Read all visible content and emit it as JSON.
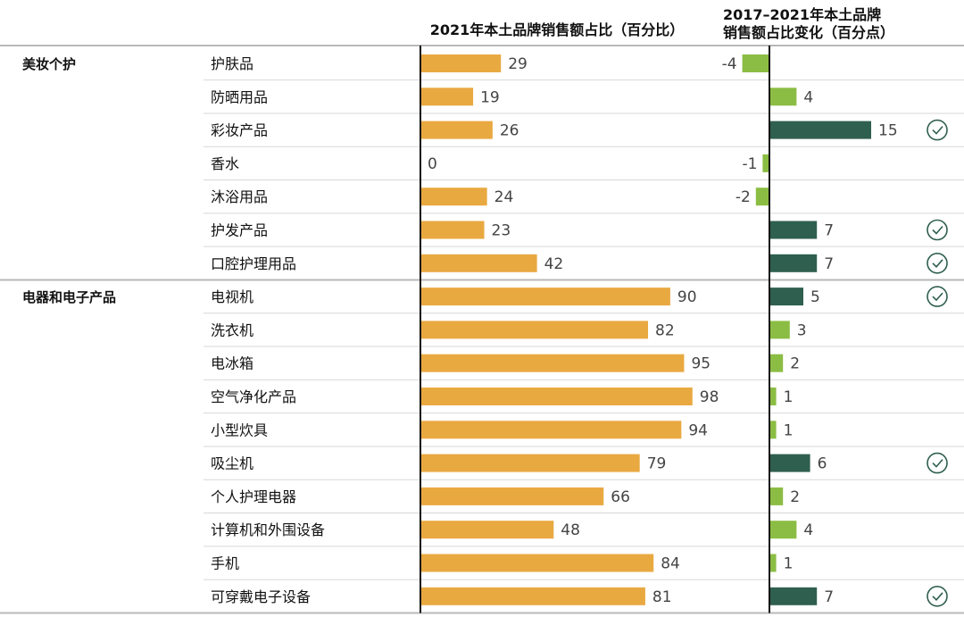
{
  "chart_data": {
    "type": "bar",
    "headers": {
      "left": "2021年本土品牌销售额占比（百分比）",
      "right_line1": "2017–2021年本土品牌",
      "right_line2": "销售额占比变化（百分点）"
    },
    "groups": [
      {
        "name": "美妆个护",
        "items": [
          {
            "label": "护肤品",
            "share": 29,
            "change": -4,
            "check": false
          },
          {
            "label": "防晒用品",
            "share": 19,
            "change": 4,
            "check": false
          },
          {
            "label": "彩妆产品",
            "share": 26,
            "change": 15,
            "check": true
          },
          {
            "label": "香水",
            "share": 0,
            "change": -1,
            "check": false
          },
          {
            "label": "沐浴用品",
            "share": 24,
            "change": -2,
            "check": false
          },
          {
            "label": "护发产品",
            "share": 23,
            "change": 7,
            "check": true
          },
          {
            "label": "口腔护理用品",
            "share": 42,
            "change": 7,
            "check": true
          }
        ]
      },
      {
        "name": "电器和电子产品",
        "items": [
          {
            "label": "电视机",
            "share": 90,
            "change": 5,
            "check": true
          },
          {
            "label": "洗衣机",
            "share": 82,
            "change": 3,
            "check": false
          },
          {
            "label": "电冰箱",
            "share": 95,
            "change": 2,
            "check": false
          },
          {
            "label": "空气净化产品",
            "share": 98,
            "change": 1,
            "check": false
          },
          {
            "label": "小型炊具",
            "share": 94,
            "change": 1,
            "check": false
          },
          {
            "label": "吸尘机",
            "share": 79,
            "change": 6,
            "check": true
          },
          {
            "label": "个人护理电器",
            "share": 66,
            "change": 2,
            "check": false
          },
          {
            "label": "计算机和外围设备",
            "share": 48,
            "change": 4,
            "check": false
          },
          {
            "label": "手机",
            "share": 84,
            "change": 1,
            "check": false
          },
          {
            "label": "可穿戴电子设备",
            "share": 81,
            "change": 7,
            "check": true
          }
        ]
      }
    ],
    "colors": {
      "share_bar": "#e9a941",
      "change_light": "#8bbd44",
      "change_dark": "#2f5f4f",
      "check": "#2f5f4f",
      "axis": "#111111",
      "separator": "#b8b8b8"
    }
  }
}
